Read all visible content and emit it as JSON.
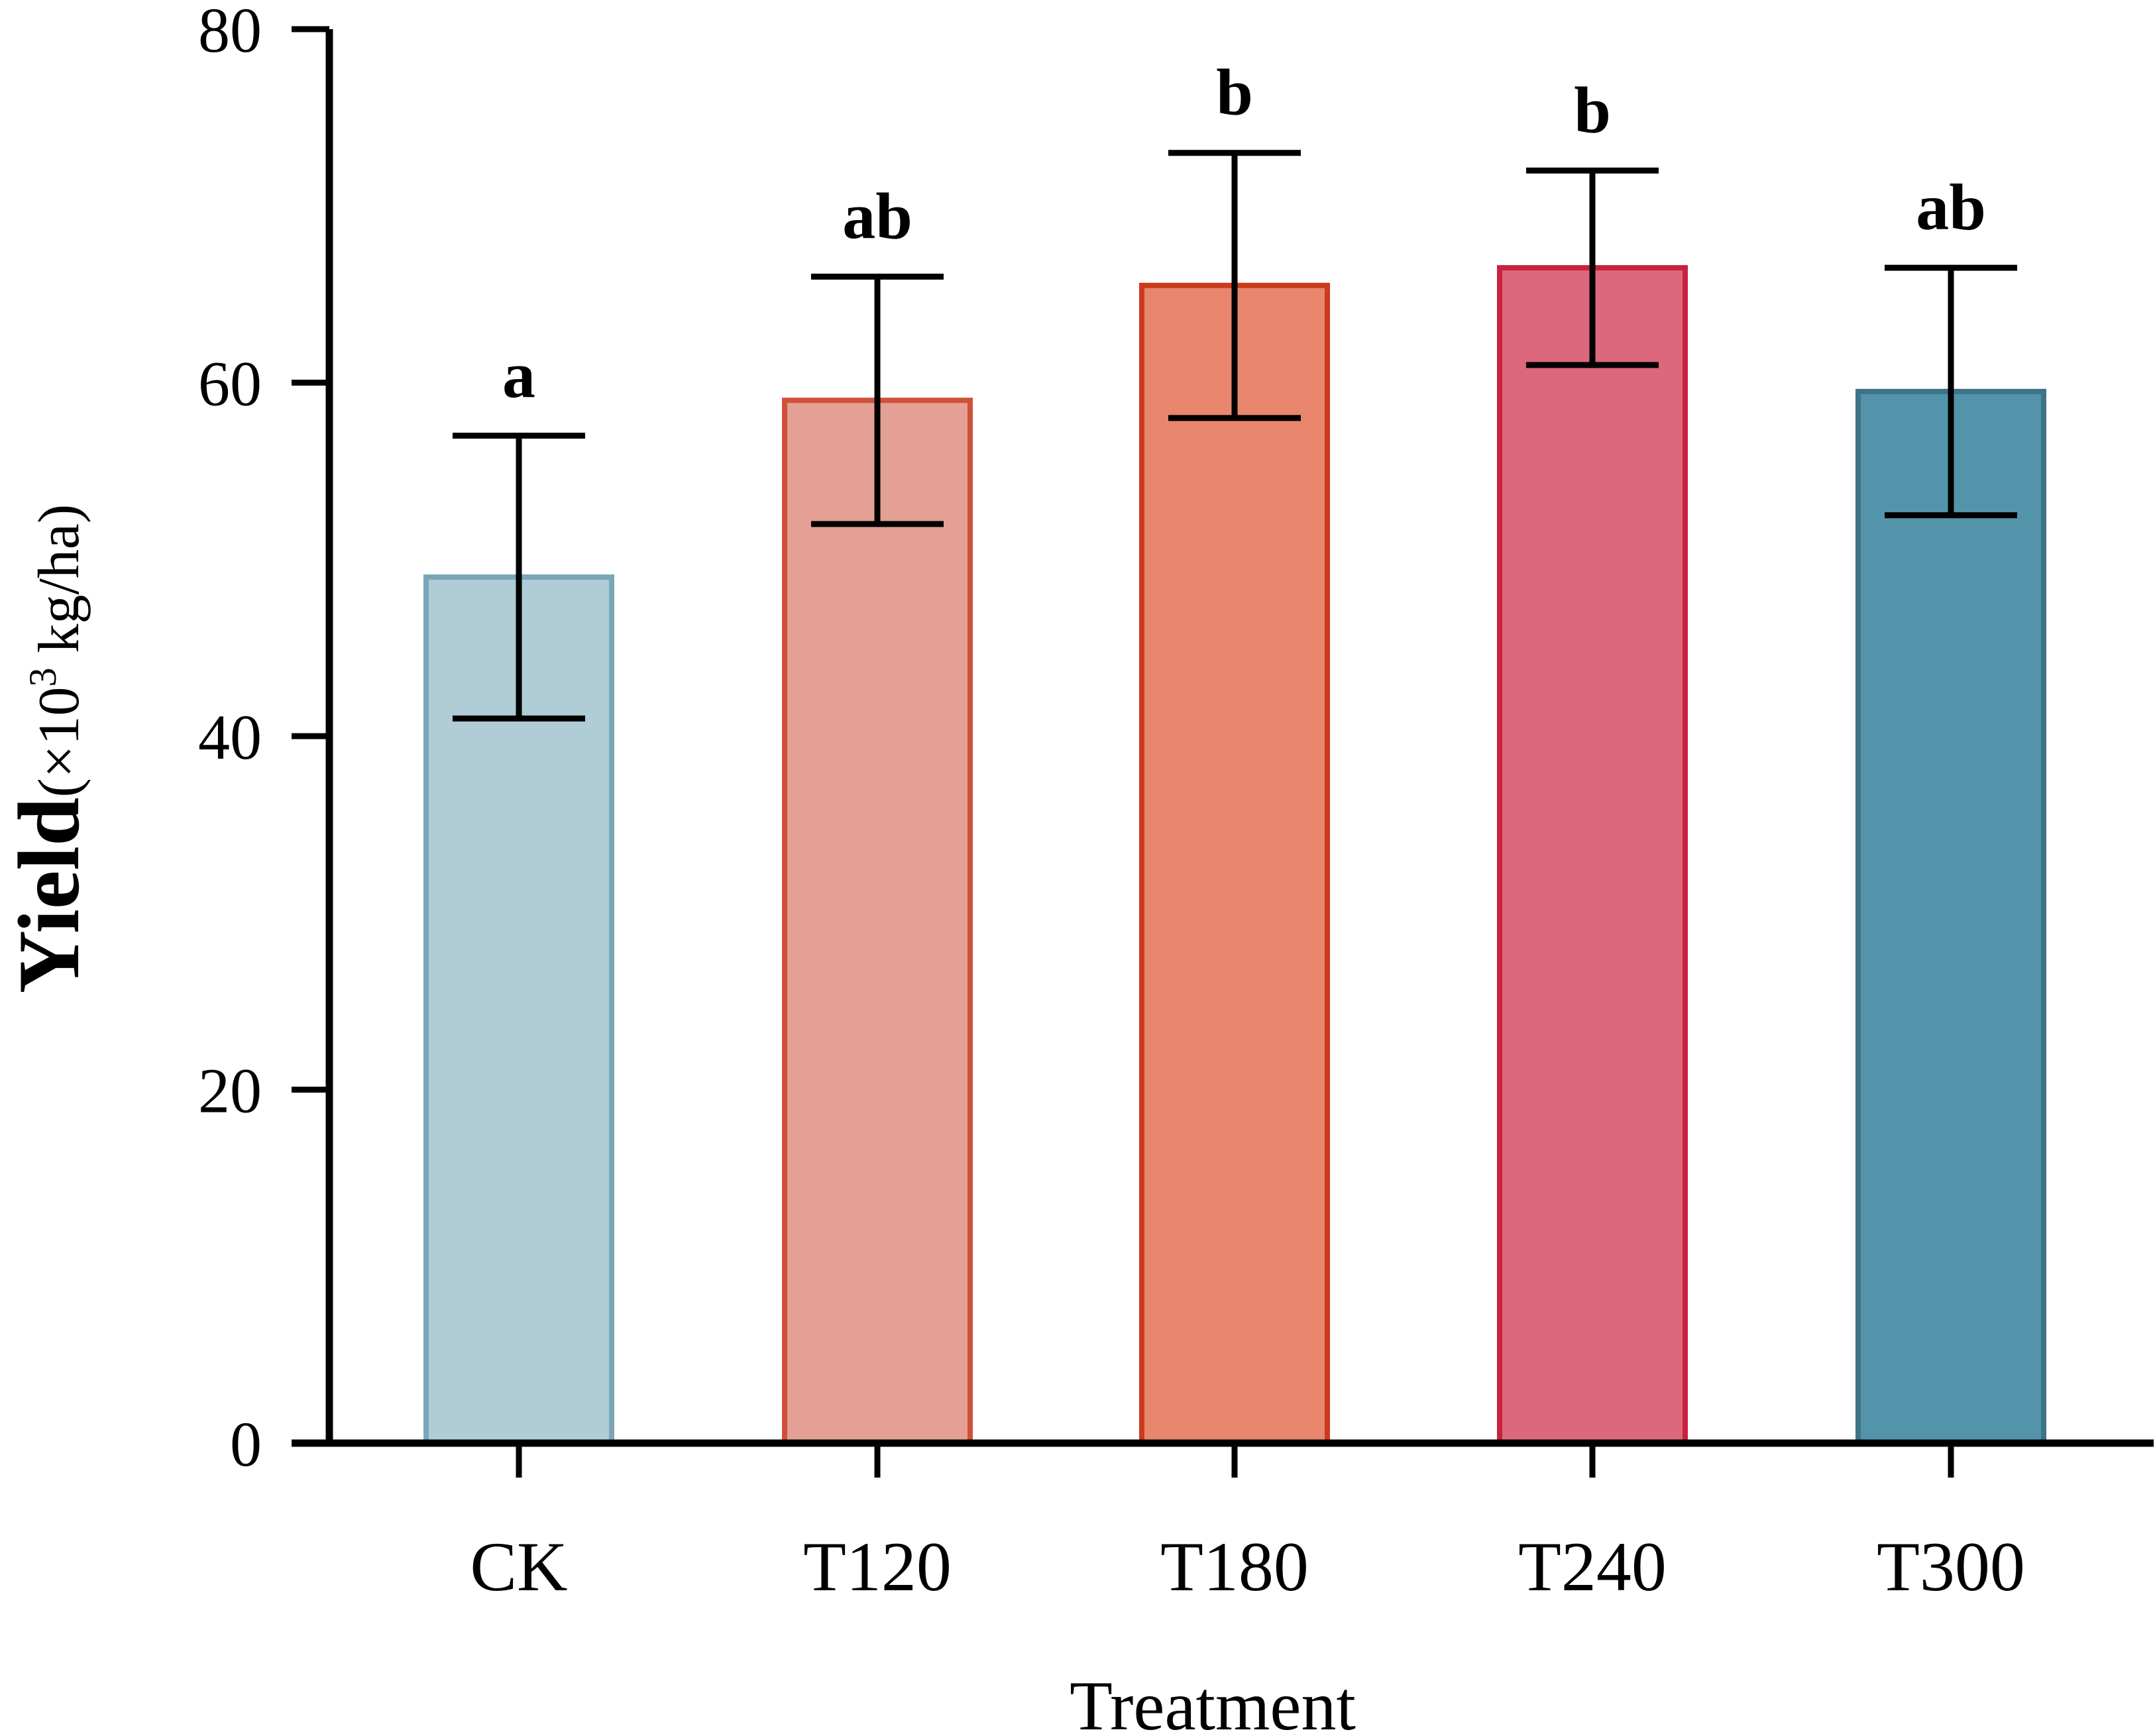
{
  "chart_data": {
    "type": "bar",
    "title": "",
    "xlabel": "Treatment",
    "ylabel": {
      "main": "Yield",
      "unit_prefix": "(×10",
      "unit_sup": "3",
      "unit_suffix": " kg/ha)"
    },
    "ylim": [
      0,
      80
    ],
    "yticks": [
      "0",
      "20",
      "40",
      "60",
      "80"
    ],
    "categories": [
      "CK",
      "T120",
      "T180",
      "T240",
      "T300"
    ],
    "values": [
      49,
      59,
      65.5,
      66.5,
      59.5
    ],
    "errors": [
      8,
      7,
      7.5,
      5.5,
      7
    ],
    "significance": [
      "a",
      "ab",
      "b",
      "b",
      "ab"
    ],
    "colors": {
      "fill": [
        "#b0ccd6",
        "#e4a094",
        "#e8866e",
        "#dd687b",
        "#5394ab"
      ],
      "edge": [
        "#7aa6b8",
        "#d0503a",
        "#cc3a1c",
        "#c8223e",
        "#3e7388"
      ],
      "axis": "#000000",
      "error_bar": "#000000"
    }
  }
}
